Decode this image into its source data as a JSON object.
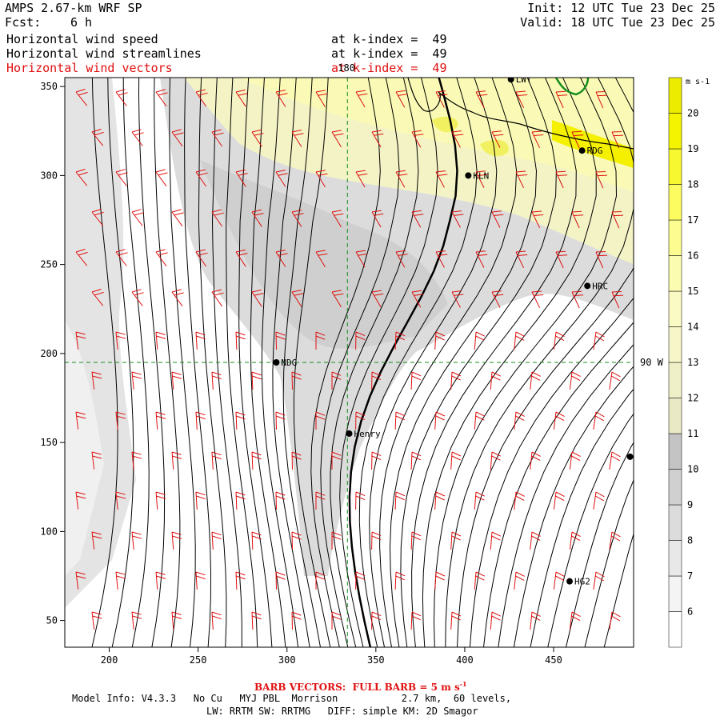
{
  "header": {
    "model_title": "AMPS 2.67-km WRF SP",
    "forecast_label": "Fcst:",
    "forecast_value": "6 h",
    "init": "Init: 12 UTC Tue 23 Dec 25",
    "valid": "Valid: 18 UTC Tue 23 Dec 25",
    "fields": [
      {
        "name": "Horizontal wind speed",
        "level": "at k-index =  49"
      },
      {
        "name": "Horizontal wind streamlines",
        "level": "at k-index =  49"
      },
      {
        "name": "Horizontal wind vectors",
        "level": "at k-index =  49"
      }
    ]
  },
  "map": {
    "x_range": [
      175,
      495
    ],
    "y_range": [
      35,
      355
    ],
    "x_ticks": [
      200,
      250,
      300,
      350,
      400,
      450
    ],
    "y_ticks": [
      50,
      100,
      150,
      200,
      250,
      300,
      350
    ],
    "ref_line_labels": {
      "vertical": "180",
      "horizontal": "90 W"
    },
    "ref_x": 334,
    "ref_y": 195,
    "stations": [
      {
        "name": "NDG",
        "x": 294,
        "y": 195
      },
      {
        "name": "Henry",
        "x": 335,
        "y": 155
      },
      {
        "name": "KLN",
        "x": 402,
        "y": 300
      },
      {
        "name": "RDG",
        "x": 466,
        "y": 314
      },
      {
        "name": "HRC",
        "x": 469,
        "y": 238
      },
      {
        "name": "HG2",
        "x": 459,
        "y": 72
      },
      {
        "name": "LWT",
        "x": 426,
        "y": 354
      },
      {
        "name": "",
        "x": 493,
        "y": 142
      }
    ]
  },
  "colorbar": {
    "unit": "m s-1",
    "levels": [
      6,
      7,
      8,
      9,
      10,
      11,
      12,
      13,
      14,
      15,
      16,
      17,
      18,
      19,
      20
    ],
    "colors": [
      "#ffffff",
      "#f4f4f4",
      "#e8e8e8",
      "#dcdcdc",
      "#d0d0d0",
      "#c4c4c4",
      "#e9e9c6",
      "#f0f0c8",
      "#f6f6c8",
      "#fafac4",
      "#fcfcb0",
      "#fcfc90",
      "#fcfc60",
      "#f8f830",
      "#f4f400",
      "#ecec00"
    ]
  },
  "footer": {
    "barb_note": "BARB VECTORS:  FULL BARB = 5 m s",
    "barb_sup": "-1",
    "model_info": "Model Info: V4.3.3   No Cu   MYJ PBL  Morrison           2.7 km,  60 levels,",
    "physics": "LW: RRTM SW: RRTMG   DIFF: simple KM: 2D Smagor"
  }
}
